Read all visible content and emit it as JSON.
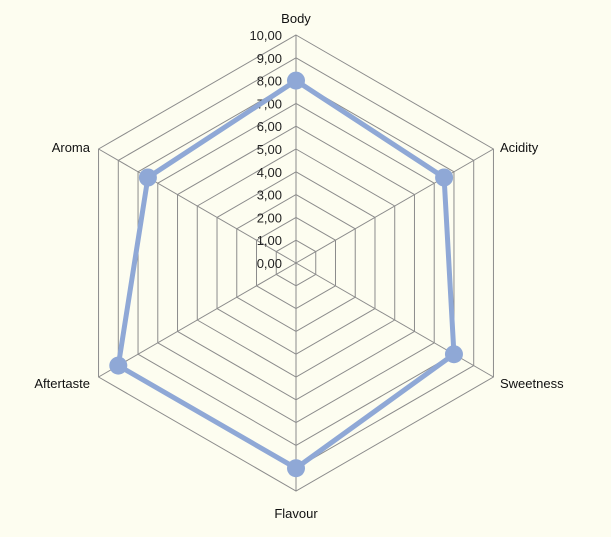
{
  "chart_data": {
    "type": "radar",
    "categories": [
      "Body",
      "Acidity",
      "Sweetness",
      "Flavour",
      "Aftertaste",
      "Aroma"
    ],
    "series": [
      {
        "values": [
          8.0,
          7.5,
          8.0,
          9.0,
          9.0,
          7.5
        ]
      }
    ],
    "rlim": [
      0,
      10
    ],
    "ticks": [
      "0,00",
      "1,00",
      "2,00",
      "3,00",
      "4,00",
      "5,00",
      "6,00",
      "7,00",
      "8,00",
      "9,00",
      "10,00"
    ],
    "grid": true,
    "legend": "none",
    "colors": {
      "series": "#8fa8d6",
      "grid": "#8c8c8c",
      "background": "#fdfdf0"
    }
  }
}
